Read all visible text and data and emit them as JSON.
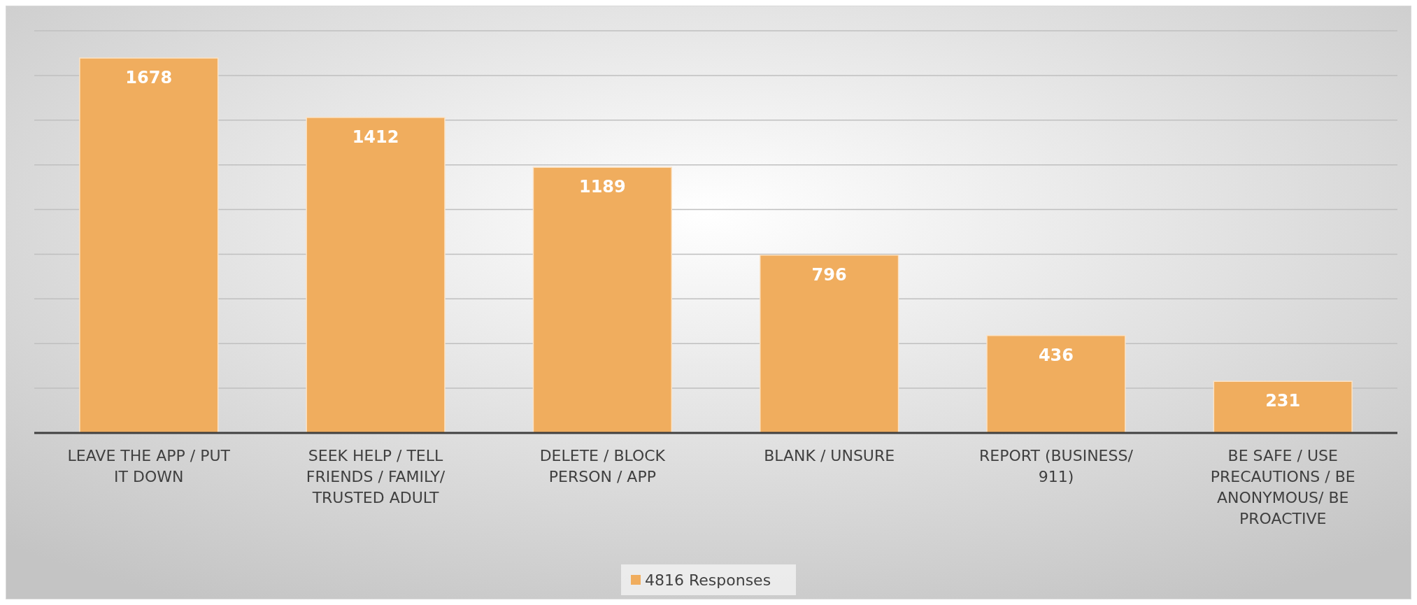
{
  "chart_data": {
    "type": "bar",
    "categories": [
      "LEAVE THE APP / PUT IT DOWN",
      "SEEK HELP / TELL FRIENDS / FAMILY/ TRUSTED ADULT",
      "DELETE / BLOCK PERSON / APP",
      "BLANK / UNSURE",
      "REPORT (BUSINESS/ 911)",
      "BE SAFE / USE PRECAUTIONS / BE ANONYMOUS/ BE PROACTIVE"
    ],
    "series": [
      {
        "name": "4816 Responses",
        "color": "#f0ad5e",
        "values": [
          1678,
          1412,
          1189,
          796,
          436,
          231
        ]
      }
    ],
    "ylim": [
      0,
      1800
    ],
    "yticks": [
      {
        "value": 0,
        "label": null
      },
      {
        "value": 200,
        "label": null
      },
      {
        "value": 400,
        "label": null
      },
      {
        "value": 600,
        "label": null
      },
      {
        "value": 800,
        "label": null
      },
      {
        "value": 1000,
        "label": null
      },
      {
        "value": 1200,
        "label": null
      },
      {
        "value": 1400,
        "label": null
      },
      {
        "value": 1600,
        "label": null
      },
      {
        "value": 1800,
        "label": null
      }
    ],
    "tick_labels": "x",
    "grid": "y",
    "data_labels": true,
    "legend": "bottom"
  }
}
